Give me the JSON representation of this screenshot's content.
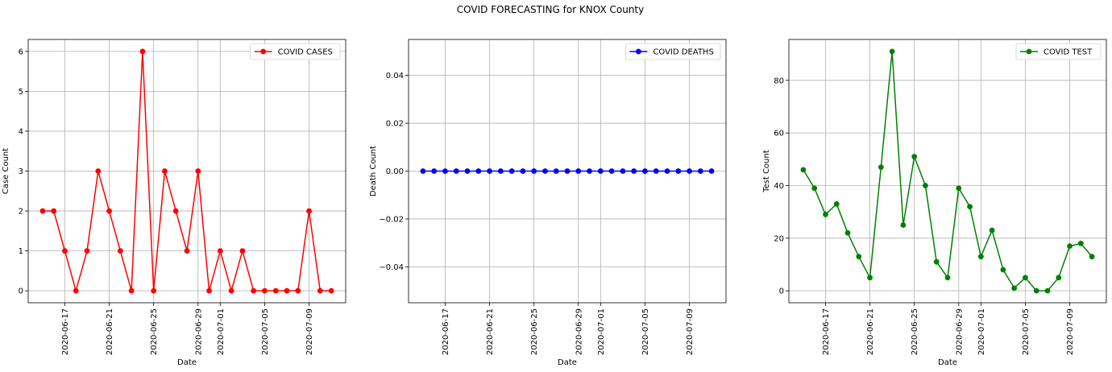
{
  "figure": {
    "title": "COVID FORECASTING for KNOX County"
  },
  "chart_data": [
    {
      "type": "line",
      "xlabel": "Date",
      "ylabel": "Case Count",
      "series": [
        {
          "name": "COVID CASES",
          "color": "#ff0000",
          "marker": "circle",
          "values": [
            2,
            2,
            1,
            0,
            1,
            3,
            2,
            1,
            0,
            6,
            0,
            3,
            2,
            1,
            3,
            0,
            1,
            0,
            1,
            0,
            0,
            0,
            0,
            0,
            2,
            0,
            0
          ]
        }
      ],
      "x": [
        "2020-06-15",
        "2020-06-16",
        "2020-06-17",
        "2020-06-18",
        "2020-06-19",
        "2020-06-20",
        "2020-06-21",
        "2020-06-22",
        "2020-06-23",
        "2020-06-24",
        "2020-06-25",
        "2020-06-26",
        "2020-06-27",
        "2020-06-28",
        "2020-06-29",
        "2020-06-30",
        "2020-07-01",
        "2020-07-02",
        "2020-07-03",
        "2020-07-04",
        "2020-07-05",
        "2020-07-06",
        "2020-07-07",
        "2020-07-08",
        "2020-07-09",
        "2020-07-10",
        "2020-07-11"
      ],
      "xticks": [
        "2020-06-17",
        "2020-06-21",
        "2020-06-25",
        "2020-06-29",
        "2020-07-01",
        "2020-07-05",
        "2020-07-09"
      ],
      "yticks": [
        0,
        1,
        2,
        3,
        4,
        5,
        6
      ],
      "ylim": [
        -0.3,
        6.3
      ],
      "legend": "upper right",
      "grid": true
    },
    {
      "type": "line",
      "xlabel": "Date",
      "ylabel": "Death Count",
      "series": [
        {
          "name": "COVID DEATHS",
          "color": "#0000ff",
          "marker": "circle",
          "values": [
            0,
            0,
            0,
            0,
            0,
            0,
            0,
            0,
            0,
            0,
            0,
            0,
            0,
            0,
            0,
            0,
            0,
            0,
            0,
            0,
            0,
            0,
            0,
            0,
            0,
            0,
            0
          ]
        }
      ],
      "x": [
        "2020-06-15",
        "2020-06-16",
        "2020-06-17",
        "2020-06-18",
        "2020-06-19",
        "2020-06-20",
        "2020-06-21",
        "2020-06-22",
        "2020-06-23",
        "2020-06-24",
        "2020-06-25",
        "2020-06-26",
        "2020-06-27",
        "2020-06-28",
        "2020-06-29",
        "2020-06-30",
        "2020-07-01",
        "2020-07-02",
        "2020-07-03",
        "2020-07-04",
        "2020-07-05",
        "2020-07-06",
        "2020-07-07",
        "2020-07-08",
        "2020-07-09",
        "2020-07-10",
        "2020-07-11"
      ],
      "xticks": [
        "2020-06-17",
        "2020-06-21",
        "2020-06-25",
        "2020-06-29",
        "2020-07-01",
        "2020-07-05",
        "2020-07-09"
      ],
      "yticks": [
        -0.04,
        -0.02,
        0.0,
        0.02,
        0.04
      ],
      "yticklabels": [
        "−0.04",
        "−0.02",
        "0.00",
        "0.02",
        "0.04"
      ],
      "ylim": [
        -0.055,
        0.055
      ],
      "legend": "upper right",
      "grid": true
    },
    {
      "type": "line",
      "xlabel": "Date",
      "ylabel": "Test Count",
      "series": [
        {
          "name": "COVID TEST",
          "color": "#008000",
          "marker": "circle",
          "values": [
            46,
            39,
            29,
            33,
            22,
            13,
            5,
            47,
            91,
            25,
            51,
            40,
            11,
            5,
            39,
            32,
            13,
            23,
            8,
            1,
            5,
            0,
            0,
            5,
            17,
            18,
            13
          ]
        }
      ],
      "x": [
        "2020-06-15",
        "2020-06-16",
        "2020-06-17",
        "2020-06-18",
        "2020-06-19",
        "2020-06-20",
        "2020-06-21",
        "2020-06-22",
        "2020-06-23",
        "2020-06-24",
        "2020-06-25",
        "2020-06-26",
        "2020-06-27",
        "2020-06-28",
        "2020-06-29",
        "2020-06-30",
        "2020-07-01",
        "2020-07-02",
        "2020-07-03",
        "2020-07-04",
        "2020-07-05",
        "2020-07-06",
        "2020-07-07",
        "2020-07-08",
        "2020-07-09",
        "2020-07-10",
        "2020-07-11"
      ],
      "xticks": [
        "2020-06-17",
        "2020-06-21",
        "2020-06-25",
        "2020-06-29",
        "2020-07-01",
        "2020-07-05",
        "2020-07-09"
      ],
      "yticks": [
        0,
        20,
        40,
        60,
        80
      ],
      "ylim": [
        -4.55,
        95.55
      ],
      "legend": "upper right",
      "grid": true
    }
  ]
}
